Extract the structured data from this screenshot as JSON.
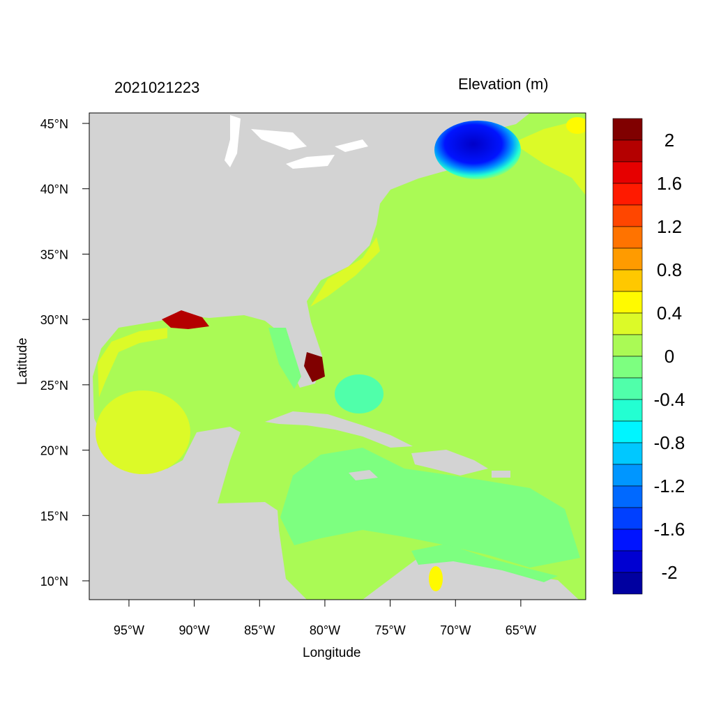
{
  "title_left": "2021021223",
  "title_right": "Elevation (m)",
  "xlabel": "Longitude",
  "ylabel": "Latitude",
  "extent": {
    "lon": [
      -98.04,
      -60.03
    ],
    "lat": [
      8.56,
      45.8
    ]
  },
  "x_ticks": [
    {
      "value": -95,
      "label": "95°W"
    },
    {
      "value": -90,
      "label": "90°W"
    },
    {
      "value": -85,
      "label": "85°W"
    },
    {
      "value": -80,
      "label": "80°W"
    },
    {
      "value": -75,
      "label": "75°W"
    },
    {
      "value": -70,
      "label": "70°W"
    },
    {
      "value": -65,
      "label": "65°W"
    }
  ],
  "y_ticks": [
    {
      "value": 45,
      "label": "45°N"
    },
    {
      "value": 40,
      "label": "40°N"
    },
    {
      "value": 35,
      "label": "35°N"
    },
    {
      "value": 30,
      "label": "30°N"
    },
    {
      "value": 25,
      "label": "25°N"
    },
    {
      "value": 20,
      "label": "20°N"
    },
    {
      "value": 15,
      "label": "15°N"
    },
    {
      "value": 10,
      "label": "10°N"
    }
  ],
  "colorbar": {
    "colors": [
      "#800000",
      "#B40000",
      "#E60000",
      "#FF1A00",
      "#FF4600",
      "#FF7300",
      "#FF9B00",
      "#FFC800",
      "#FFFA00",
      "#DCFA28",
      "#AAFA55",
      "#7DFF80",
      "#50FFAA",
      "#23FFD2",
      "#00F5FF",
      "#00C8FF",
      "#0096FF",
      "#0069FF",
      "#0040FF",
      "#0014FF",
      "#0000D2",
      "#0000A0"
    ],
    "labels": [
      "2",
      "1.6",
      "1.2",
      "0.8",
      "0.4",
      "0",
      "-0.4",
      "-0.8",
      "-1.2",
      "-1.6",
      "-2"
    ]
  },
  "colors": {
    "land": "#D3D3D3",
    "ocean_base": "#AAFA55"
  }
}
